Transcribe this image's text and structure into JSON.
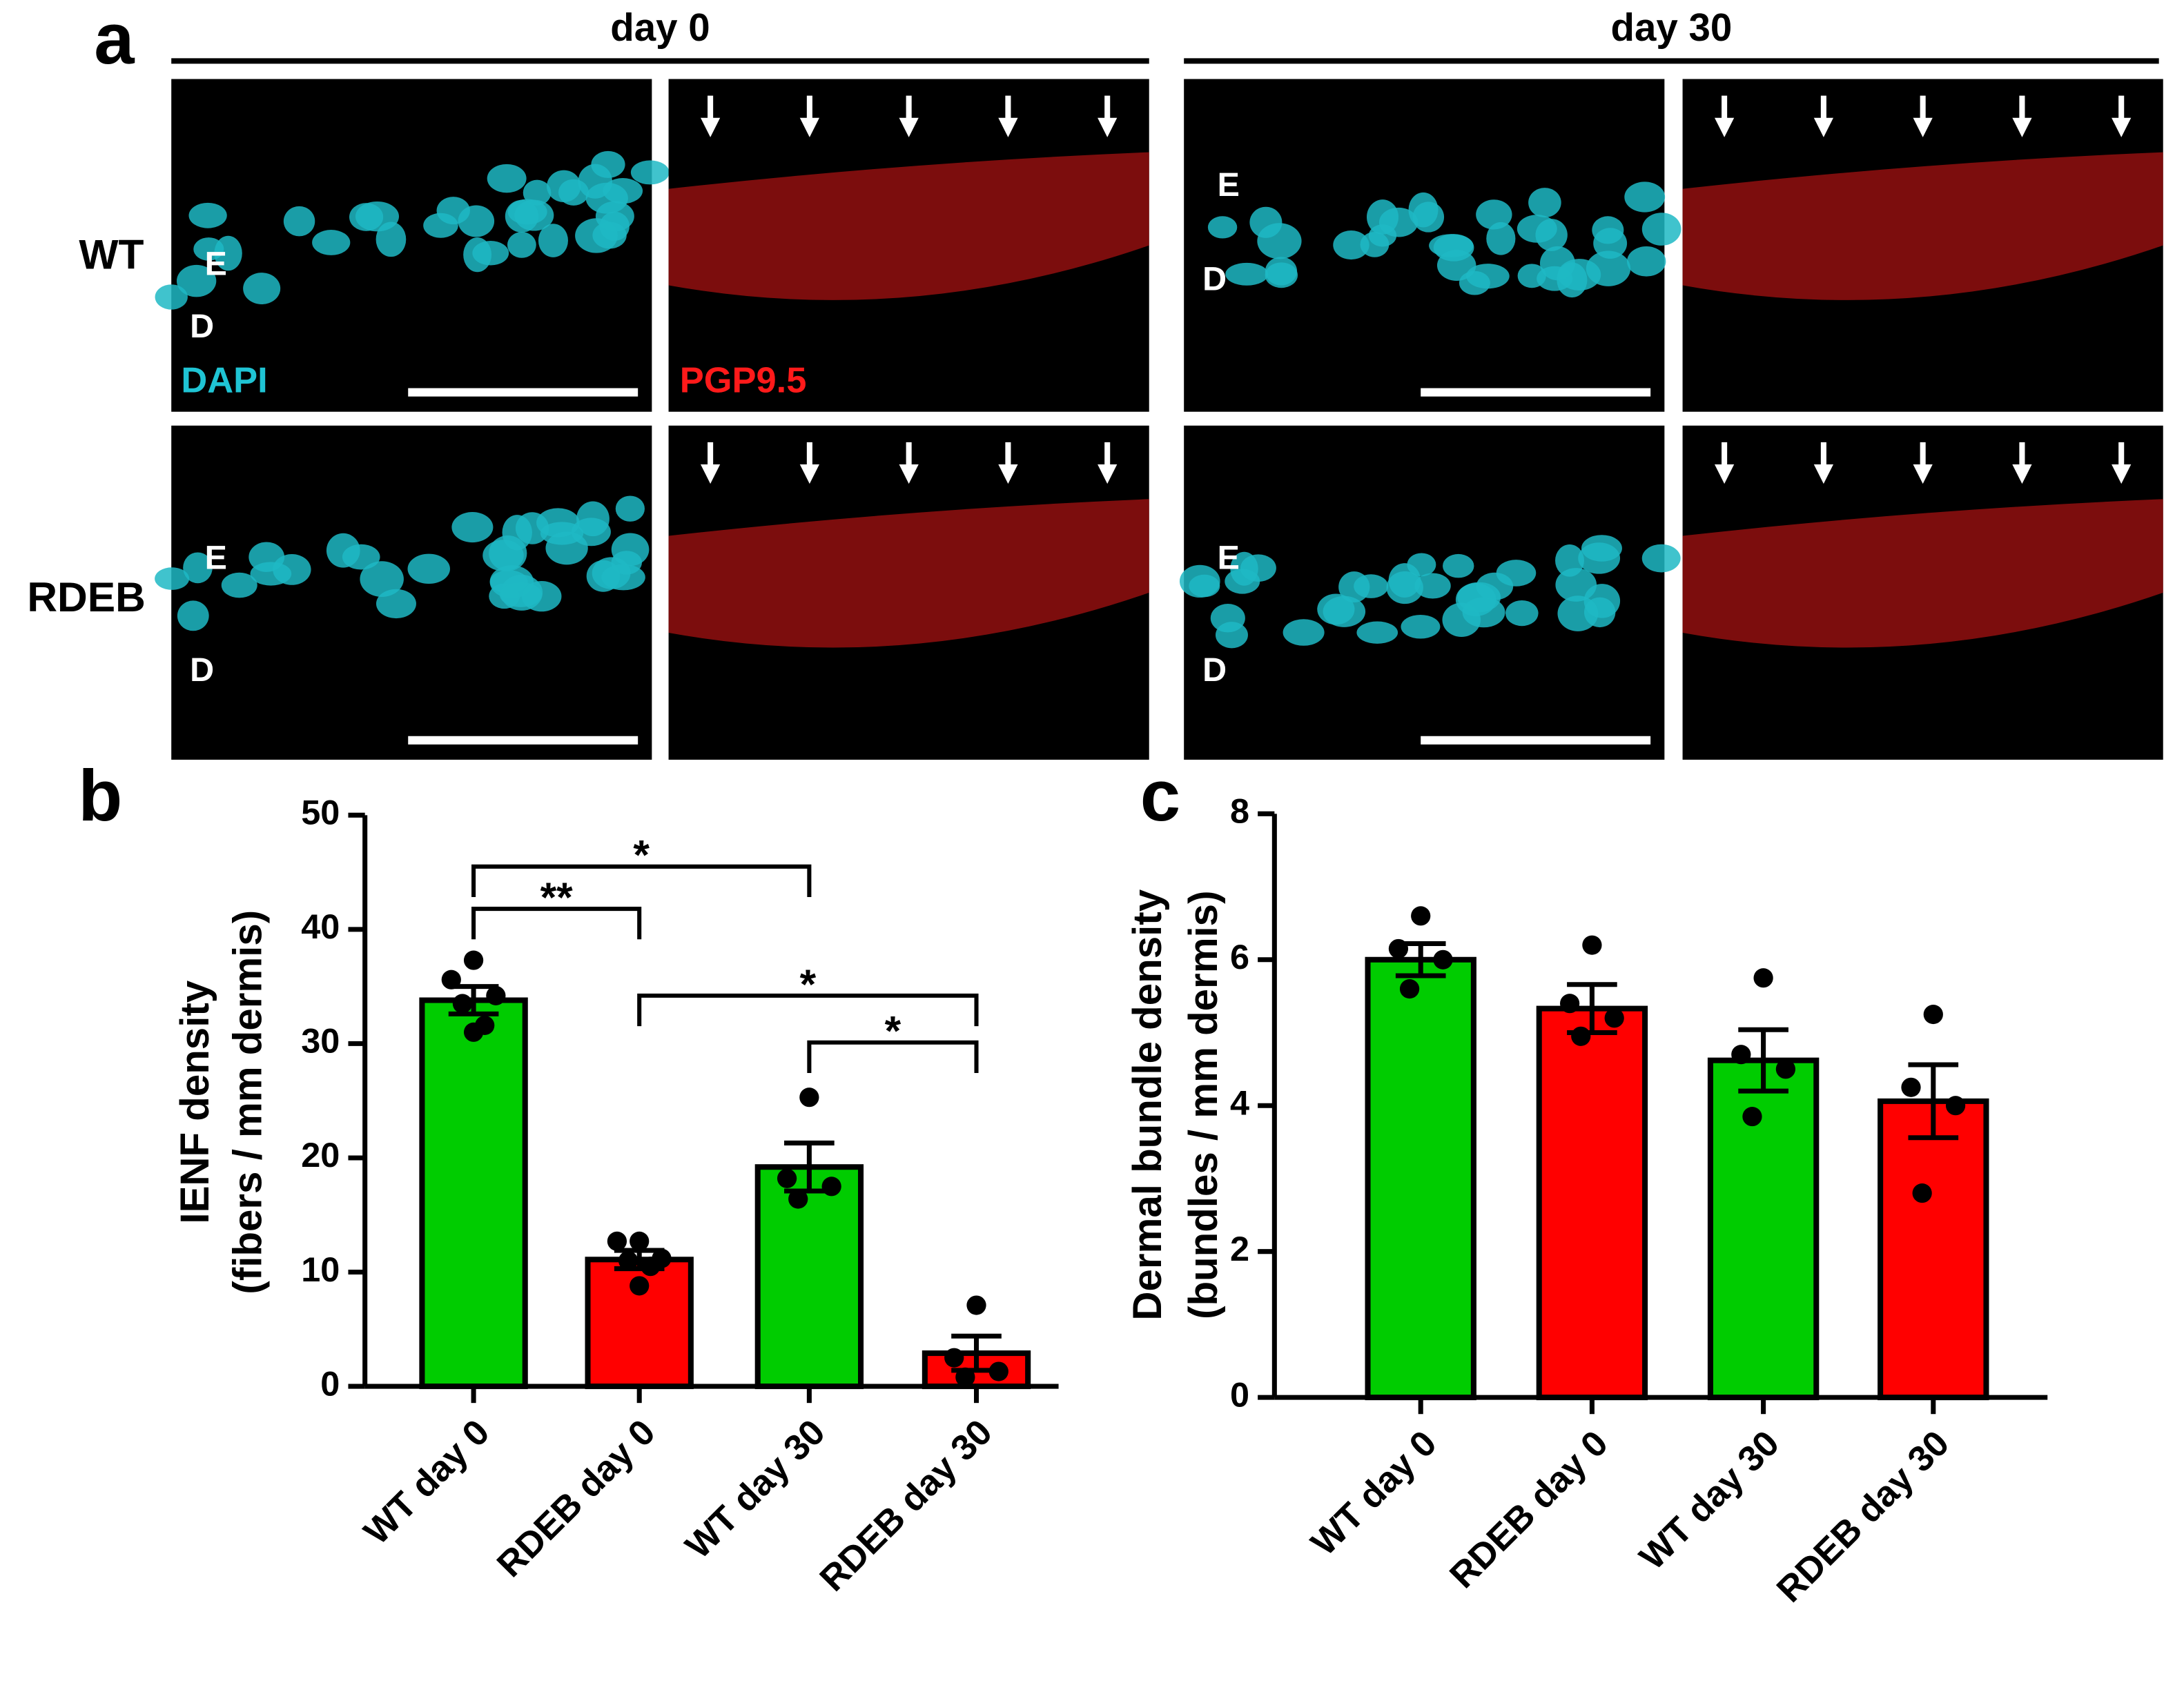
{
  "panel_a": {
    "label": "a",
    "columns": [
      "day 0",
      "day 30"
    ],
    "rows": [
      "WT",
      "RDEB"
    ],
    "layer_labels": [
      "E",
      "D"
    ],
    "stains": [
      "DAPI",
      "PGP9.5"
    ]
  },
  "chart_data": [
    {
      "type": "bar",
      "panel_label": "b",
      "ylabel": [
        "IENF density",
        "(fibers / mm dermis)"
      ],
      "categories": [
        "WT day 0",
        "RDEB day 0",
        "WT day 30",
        "RDEB day 30"
      ],
      "values": [
        33.8,
        11.1,
        19.2,
        2.9
      ],
      "errors": [
        1.2,
        0.8,
        2.1,
        1.5
      ],
      "colors": [
        "#00cc00",
        "#ff0000",
        "#00cc00",
        "#ff0000"
      ],
      "points": [
        [
          37.3,
          35.6,
          34.2,
          33.5,
          31.6,
          31.0
        ],
        [
          12.7,
          12.7,
          11.2,
          11.0,
          10.5,
          8.8
        ],
        [
          25.3,
          18.2,
          17.5,
          16.4
        ],
        [
          7.1,
          2.5,
          1.3,
          0.8
        ]
      ],
      "ylim": [
        0,
        50
      ],
      "yticks": [
        0,
        10,
        20,
        30,
        40,
        50
      ],
      "annotations": [
        {
          "text": "*",
          "from": 0,
          "to": 2,
          "y": 45.5
        },
        {
          "text": "**",
          "from": 0,
          "to": 1,
          "y": 41.8
        },
        {
          "text": "*",
          "from": 1,
          "to": 3,
          "y": 34.2
        },
        {
          "text": "*",
          "from": 2,
          "to": 3,
          "y": 30.1
        }
      ]
    },
    {
      "type": "bar",
      "panel_label": "c",
      "ylabel": [
        "Dermal bundle density",
        "(bundles / mm dermis)"
      ],
      "categories": [
        "WT day 0",
        "RDEB day 0",
        "WT day 30",
        "RDEB day 30"
      ],
      "values": [
        6.0,
        5.33,
        4.62,
        4.06
      ],
      "errors": [
        0.22,
        0.33,
        0.42,
        0.5
      ],
      "colors": [
        "#00cc00",
        "#ff0000",
        "#00cc00",
        "#ff0000"
      ],
      "points": [
        [
          6.6,
          6.15,
          6.0,
          5.6
        ],
        [
          6.2,
          5.4,
          5.2,
          4.95
        ],
        [
          5.75,
          4.7,
          4.5,
          3.85
        ],
        [
          5.25,
          4.25,
          4.0,
          2.8
        ]
      ],
      "ylim": [
        0,
        8
      ],
      "yticks": [
        0,
        2,
        4,
        6,
        8
      ]
    }
  ]
}
